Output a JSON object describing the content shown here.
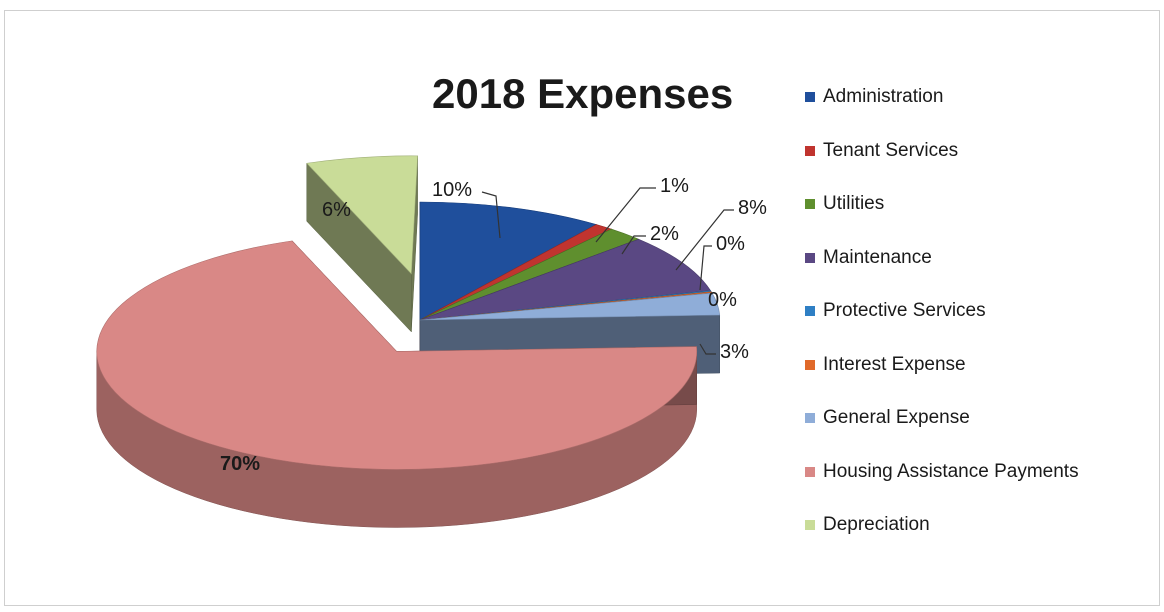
{
  "chart_data": {
    "type": "pie",
    "title": "2018 Expenses",
    "legend_position": "right",
    "categories": [
      "Administration",
      "Tenant Services",
      "Utilities",
      "Maintenance",
      "Protective Services",
      "Interest Expense",
      "General Expense",
      "Housing Assistance Payments",
      "Depreciation"
    ],
    "values": [
      10,
      1,
      2,
      8,
      0,
      0,
      3,
      70,
      6
    ],
    "labels": [
      "10%",
      "1%",
      "2%",
      "8%",
      "0%",
      "0%",
      "3%",
      "70%",
      "6%"
    ],
    "colors": [
      "#1f4f9c",
      "#c0342f",
      "#5f8f2e",
      "#5a4883",
      "#2f7fc4",
      "#e0692a",
      "#8fadd8",
      "#d98886",
      "#c9dc98"
    ]
  }
}
